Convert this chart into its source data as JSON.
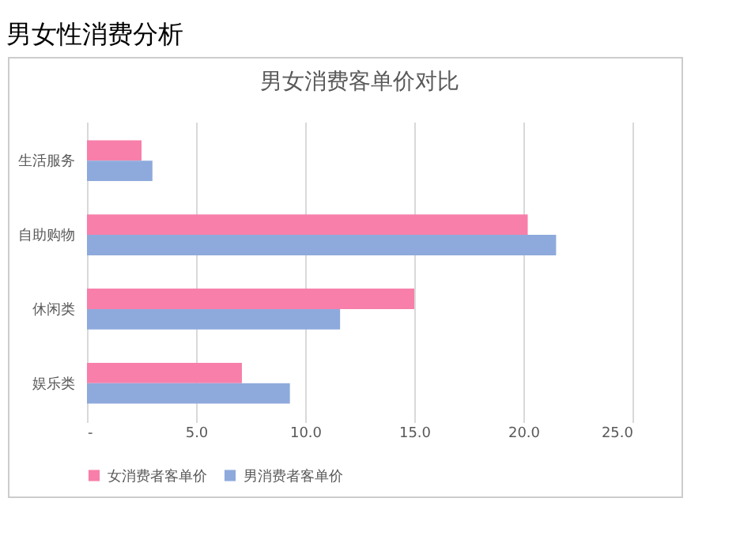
{
  "chart_data": {
    "type": "bar",
    "orientation": "horizontal",
    "title": "男女性消费分析",
    "subtitle": "男女消费客单价对比",
    "categories": [
      "生活服务",
      "自助购物",
      "休闲类",
      "娱乐类"
    ],
    "series": [
      {
        "name": "女消费者客单价",
        "color": "#f77faa",
        "values": [
          2.5,
          20.2,
          15.0,
          7.1
        ]
      },
      {
        "name": "男消费者客单价",
        "color": "#8eaadc",
        "values": [
          3.0,
          21.5,
          11.6,
          9.3
        ]
      }
    ],
    "xlim": [
      0,
      25
    ],
    "xticks": [
      {
        "value": 0,
        "label": "-"
      },
      {
        "value": 5,
        "label": "5.0"
      },
      {
        "value": 10,
        "label": "10.0"
      },
      {
        "value": 15,
        "label": "15.0"
      },
      {
        "value": 20,
        "label": "20.0"
      },
      {
        "value": 25,
        "label": "25.0"
      }
    ],
    "grid": "x",
    "legend": "bottom"
  }
}
